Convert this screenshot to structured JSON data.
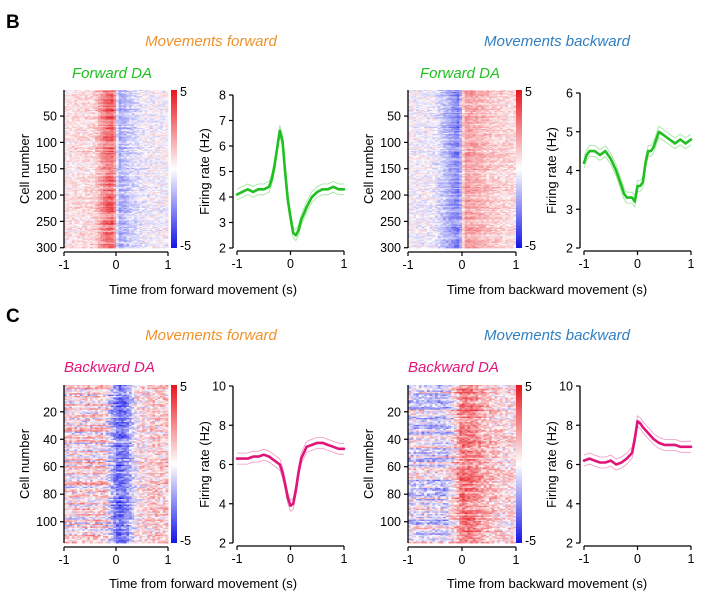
{
  "figure": {
    "colors": {
      "orange": "#f0922b",
      "blue": "#2f7fc1",
      "green": "#1fc01f",
      "magenta": "#e0157a",
      "heat_pos": "#e8141c",
      "heat_neg": "#1414e8"
    }
  },
  "chart_data": [
    {
      "panel": "B",
      "position": "top-left",
      "type": "heatmap",
      "header": "Movements forward",
      "label": "Forward DA",
      "label_color": "green",
      "ylabel": "Cell number",
      "yticks": [
        50,
        100,
        150,
        200,
        250,
        300
      ],
      "ylim": [
        1,
        300
      ],
      "rows": 300,
      "xlim": [
        -1,
        1
      ],
      "xticks": [
        -1,
        0,
        1
      ],
      "colorbar": {
        "max": 5,
        "min": -5,
        "tick_labels": [
          "5",
          "-5"
        ]
      },
      "pattern": "red before 0, blue after 0",
      "profile": {
        "time_s": [
          -1,
          -0.4,
          -0.2,
          -0.05,
          0.05,
          0.3,
          0.6,
          1
        ],
        "z": [
          0.3,
          0.6,
          2.5,
          3.0,
          -1.5,
          -0.6,
          -0.1,
          0.0
        ]
      }
    },
    {
      "panel": "B",
      "position": "top-left",
      "type": "line",
      "color": "green",
      "ylabel": "Firing rate (Hz)",
      "xlim": [
        -1,
        1
      ],
      "ylim": [
        2,
        8
      ],
      "yticks": [
        2,
        3,
        4,
        5,
        6,
        7,
        8
      ],
      "xticks": [
        -1,
        0,
        1
      ],
      "series": [
        {
          "x": [
            -1,
            -0.9,
            -0.8,
            -0.7,
            -0.6,
            -0.5,
            -0.4,
            -0.35,
            -0.3,
            -0.25,
            -0.2,
            -0.15,
            -0.1,
            -0.05,
            0,
            0.05,
            0.1,
            0.15,
            0.2,
            0.3,
            0.4,
            0.5,
            0.6,
            0.7,
            0.8,
            0.9,
            1.0
          ],
          "y": [
            4.1,
            4.2,
            4.3,
            4.2,
            4.3,
            4.3,
            4.4,
            4.7,
            5.2,
            5.9,
            6.6,
            6.2,
            5.0,
            3.9,
            3.2,
            2.6,
            2.5,
            2.7,
            3.1,
            3.6,
            4.0,
            4.2,
            4.3,
            4.3,
            4.4,
            4.3,
            4.3
          ]
        }
      ]
    },
    {
      "panel": "B",
      "position": "top-right",
      "type": "heatmap",
      "header": "Movements backward",
      "label": "Forward DA",
      "label_color": "green",
      "ylabel": "Cell number",
      "yticks": [
        50,
        100,
        150,
        200,
        250,
        300
      ],
      "ylim": [
        1,
        300
      ],
      "rows": 300,
      "xlim": [
        -1,
        1
      ],
      "xticks": [
        -1,
        0,
        1
      ],
      "colorbar": {
        "max": 5,
        "min": -5,
        "tick_labels": [
          "5",
          "-5"
        ]
      },
      "pattern": "blue before 0, red after 0",
      "profile": {
        "time_s": [
          -1,
          -0.5,
          -0.2,
          -0.05,
          0.05,
          0.3,
          0.6,
          1
        ],
        "z": [
          0.0,
          -0.2,
          -1.5,
          -2.2,
          1.6,
          1.2,
          0.7,
          0.4
        ]
      }
    },
    {
      "panel": "B",
      "position": "top-right",
      "type": "line",
      "color": "green",
      "ylabel": "Firing rate (Hz)",
      "xlim": [
        -1,
        1
      ],
      "ylim": [
        2,
        6
      ],
      "yticks": [
        2,
        3,
        4,
        5,
        6
      ],
      "xticks": [
        -1,
        0,
        1
      ],
      "series": [
        {
          "x": [
            -1,
            -0.95,
            -0.9,
            -0.8,
            -0.7,
            -0.6,
            -0.5,
            -0.4,
            -0.3,
            -0.25,
            -0.2,
            -0.15,
            -0.1,
            -0.05,
            0,
            0.05,
            0.1,
            0.15,
            0.2,
            0.25,
            0.3,
            0.35,
            0.4,
            0.5,
            0.6,
            0.7,
            0.8,
            0.9,
            1.0
          ],
          "y": [
            4.2,
            4.4,
            4.5,
            4.5,
            4.4,
            4.5,
            4.3,
            4.0,
            3.6,
            3.4,
            3.3,
            3.3,
            3.3,
            3.2,
            3.6,
            3.6,
            3.7,
            4.2,
            4.5,
            4.5,
            4.6,
            4.8,
            5.0,
            4.9,
            4.8,
            4.7,
            4.8,
            4.7,
            4.8
          ]
        }
      ]
    },
    {
      "panel": "C",
      "position": "bottom-left",
      "type": "heatmap",
      "header": "Movements forward",
      "label": "Backward DA",
      "label_color": "magenta",
      "ylabel": "Cell number",
      "yticks": [
        20,
        40,
        60,
        80,
        100
      ],
      "ylim": [
        1,
        115
      ],
      "rows": 115,
      "xlim": [
        -1,
        1
      ],
      "xticks": [
        -1,
        0,
        1
      ],
      "colorbar": {
        "max": 5,
        "min": -5,
        "tick_labels": [
          "5",
          "-5"
        ]
      },
      "pattern": "mixed before 0, blue after 0",
      "profile": {
        "time_s": [
          -1,
          -0.5,
          -0.2,
          -0.05,
          0.05,
          0.2,
          0.4,
          0.7,
          1
        ],
        "z": [
          0.4,
          0.5,
          0.5,
          -1.5,
          -2.8,
          -2.0,
          0.2,
          0.7,
          0.8
        ]
      }
    },
    {
      "panel": "C",
      "position": "bottom-left",
      "type": "line",
      "color": "magenta",
      "ylabel": "Firing rate (Hz)",
      "xlim": [
        -1,
        1
      ],
      "ylim": [
        2,
        10
      ],
      "yticks": [
        2,
        4,
        6,
        8,
        10
      ],
      "xticks": [
        -1,
        0,
        1
      ],
      "series": [
        {
          "x": [
            -1,
            -0.9,
            -0.8,
            -0.7,
            -0.6,
            -0.5,
            -0.4,
            -0.3,
            -0.2,
            -0.15,
            -0.1,
            -0.05,
            0,
            0.05,
            0.1,
            0.15,
            0.2,
            0.3,
            0.4,
            0.5,
            0.6,
            0.7,
            0.8,
            0.9,
            1.0
          ],
          "y": [
            6.3,
            6.3,
            6.3,
            6.4,
            6.4,
            6.5,
            6.4,
            6.2,
            6.0,
            5.6,
            5.0,
            4.3,
            3.9,
            4.0,
            4.7,
            5.6,
            6.3,
            6.9,
            7.0,
            7.1,
            7.1,
            7.0,
            6.9,
            6.8,
            6.8
          ]
        }
      ]
    },
    {
      "panel": "C",
      "position": "bottom-right",
      "type": "heatmap",
      "header": "Movements backward",
      "label": "Backward DA",
      "label_color": "magenta",
      "ylabel": "Cell number",
      "yticks": [
        20,
        40,
        60,
        80,
        100
      ],
      "ylim": [
        1,
        115
      ],
      "rows": 115,
      "xlim": [
        -1,
        1
      ],
      "xticks": [
        -1,
        0,
        1
      ],
      "colorbar": {
        "max": 5,
        "min": -5,
        "tick_labels": [
          "5",
          "-5"
        ]
      },
      "pattern": "mixed/blue before 0, red after 0",
      "profile": {
        "time_s": [
          -1,
          -0.6,
          -0.3,
          -0.1,
          0,
          0.15,
          0.4,
          0.7,
          1
        ],
        "z": [
          -0.2,
          -0.4,
          -0.6,
          1.0,
          2.6,
          2.4,
          1.4,
          0.6,
          0.4
        ]
      }
    },
    {
      "panel": "C",
      "position": "bottom-right",
      "type": "line",
      "color": "magenta",
      "ylabel": "Firing rate (Hz)",
      "xlim": [
        -1,
        1
      ],
      "ylim": [
        2,
        10
      ],
      "yticks": [
        2,
        4,
        6,
        8,
        10
      ],
      "xticks": [
        -1,
        0,
        1
      ],
      "series": [
        {
          "x": [
            -1,
            -0.9,
            -0.8,
            -0.7,
            -0.6,
            -0.5,
            -0.4,
            -0.3,
            -0.2,
            -0.1,
            -0.05,
            0,
            0.05,
            0.1,
            0.2,
            0.3,
            0.4,
            0.5,
            0.6,
            0.7,
            0.8,
            0.9,
            1.0
          ],
          "y": [
            6.2,
            6.3,
            6.2,
            6.1,
            6.1,
            6.2,
            6.0,
            6.1,
            6.3,
            6.6,
            7.3,
            8.2,
            8.1,
            7.9,
            7.6,
            7.3,
            7.1,
            7.0,
            7.0,
            7.0,
            6.9,
            6.9,
            6.9
          ]
        }
      ]
    }
  ],
  "panel_letters": {
    "b": "B",
    "c": "C"
  },
  "xlabels": {
    "forward": "Time from forward movement (s)",
    "backward": "Time from backward movement (s)"
  },
  "headers": {
    "top_left": "Movements forward",
    "top_right": "Movements backward",
    "bottom_left": "Movements forward",
    "bottom_right": "Movements backward"
  },
  "da_labels": {
    "top_left": "Forward DA",
    "top_right": "Forward DA",
    "bottom_left": "Backward DA",
    "bottom_right": "Backward DA"
  }
}
